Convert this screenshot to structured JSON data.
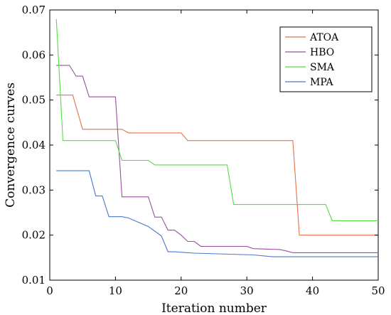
{
  "chart_data": {
    "type": "line",
    "xlabel": "Iteration number",
    "ylabel": "Convergence curves",
    "xlim": [
      0,
      50
    ],
    "ylim": [
      0.01,
      0.07
    ],
    "xticks": [
      "0",
      "10",
      "20",
      "30",
      "40",
      "50"
    ],
    "yticks": [
      "0.01",
      "0.02",
      "0.03",
      "0.04",
      "0.05",
      "0.06",
      "0.07"
    ],
    "grid": false,
    "legend_position": "top-right",
    "series": [
      {
        "name": "ATOA",
        "color": "#e5704a",
        "x": [
          1,
          3.5,
          5,
          11,
          12,
          20,
          21,
          37,
          38,
          50
        ],
        "y": [
          0.0511,
          0.0511,
          0.0435,
          0.0435,
          0.0427,
          0.0427,
          0.041,
          0.041,
          0.02,
          0.02
        ]
      },
      {
        "name": "HBO",
        "color": "#9a4fa0",
        "x": [
          1,
          3,
          4,
          5,
          6,
          10,
          11,
          15,
          16,
          17,
          18,
          19,
          20,
          21,
          22,
          23,
          30,
          31,
          35,
          36,
          37,
          50
        ],
        "y": [
          0.0577,
          0.0577,
          0.0553,
          0.0553,
          0.0507,
          0.0507,
          0.0285,
          0.0285,
          0.024,
          0.024,
          0.0211,
          0.0211,
          0.02,
          0.0186,
          0.0186,
          0.0175,
          0.0175,
          0.017,
          0.0168,
          0.0165,
          0.0161,
          0.0161
        ]
      },
      {
        "name": "SMA",
        "color": "#55dd44",
        "x": [
          1,
          2,
          10,
          11,
          15,
          16,
          27,
          28,
          42,
          43,
          50
        ],
        "y": [
          0.068,
          0.041,
          0.041,
          0.0366,
          0.0366,
          0.0356,
          0.0356,
          0.0268,
          0.0268,
          0.0232,
          0.0232
        ]
      },
      {
        "name": "MPA",
        "color": "#4a78cc",
        "x": [
          1,
          6,
          7,
          8,
          9,
          11,
          12,
          15,
          17,
          18,
          19,
          22,
          31,
          34,
          50
        ],
        "y": [
          0.0343,
          0.0343,
          0.0287,
          0.0287,
          0.0241,
          0.0241,
          0.0238,
          0.0219,
          0.0198,
          0.0163,
          0.0163,
          0.016,
          0.0156,
          0.0152,
          0.0152
        ]
      }
    ]
  }
}
